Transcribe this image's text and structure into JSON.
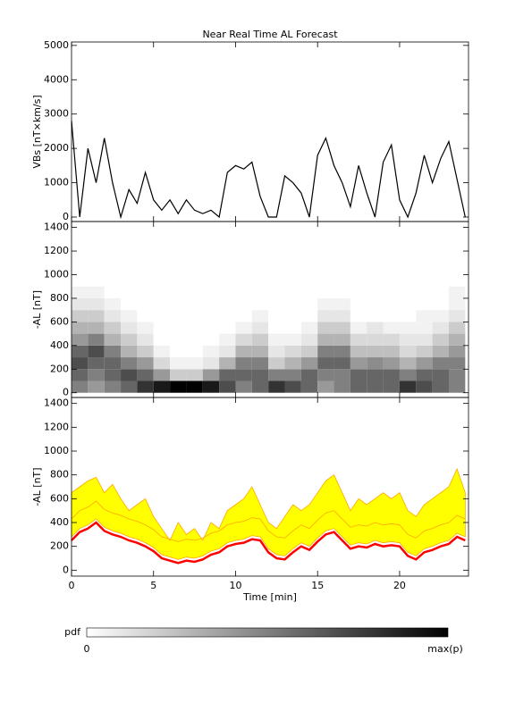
{
  "chart_data": [
    {
      "type": "line",
      "title": "Near Real Time AL Forecast",
      "ylabel": "VBs [nT×km/s]",
      "xlim": [
        0,
        24.2
      ],
      "xticks": [
        0,
        5,
        10,
        15,
        20
      ],
      "ylim": [
        -130,
        5100
      ],
      "yticks": [
        0,
        1000,
        2000,
        3000,
        4000,
        5000
      ],
      "x": [
        0,
        0.5,
        1,
        1.5,
        2,
        2.5,
        3,
        3.5,
        4,
        4.5,
        5,
        5.5,
        6,
        6.5,
        7,
        7.5,
        8,
        8.5,
        9,
        9.5,
        10,
        10.5,
        11,
        11.5,
        12,
        12.5,
        13,
        13.5,
        14,
        14.5,
        15,
        15.5,
        16,
        16.5,
        17,
        17.5,
        18,
        18.5,
        19,
        19.5,
        20,
        20.5,
        21,
        21.5,
        22,
        22.5,
        23,
        23.5,
        24
      ],
      "series": [
        {
          "color": "#000000",
          "values": [
            2800,
            0,
            2000,
            1000,
            2300,
            1000,
            0,
            800,
            400,
            1300,
            500,
            200,
            500,
            100,
            500,
            200,
            100,
            200,
            0,
            1300,
            1500,
            1400,
            1600,
            600,
            0,
            0,
            1200,
            1000,
            700,
            0,
            1800,
            2300,
            1500,
            1000,
            300,
            1500,
            700,
            0,
            1600,
            2100,
            500,
            0,
            700,
            1800,
            1000,
            1700,
            2200,
            1100,
            0
          ]
        }
      ]
    },
    {
      "type": "heatmap",
      "ylabel": "-AL [nT]",
      "xlim": [
        0,
        24.2
      ],
      "xticks": [
        0,
        5,
        10,
        15,
        20
      ],
      "ylim": [
        -40,
        1450
      ],
      "yticks": [
        0,
        200,
        400,
        600,
        800,
        1000,
        1200,
        1400
      ],
      "xbins": [
        0,
        1,
        2,
        3,
        4,
        5,
        6,
        7,
        8,
        9,
        10,
        11,
        12,
        13,
        14,
        15,
        16,
        17,
        18,
        19,
        20,
        21,
        22,
        23,
        24
      ],
      "ybins": [
        0,
        100,
        200,
        300,
        400,
        500,
        600,
        700,
        800,
        900
      ],
      "z": [
        [
          0.5,
          0.6,
          0.7,
          0.6,
          0.4,
          0.3,
          0.2,
          0.1,
          0.05
        ],
        [
          0.4,
          0.5,
          0.6,
          0.7,
          0.5,
          0.3,
          0.2,
          0.1,
          0.05
        ],
        [
          0.5,
          0.6,
          0.6,
          0.5,
          0.3,
          0.2,
          0.1,
          0.05,
          0
        ],
        [
          0.6,
          0.7,
          0.5,
          0.3,
          0.2,
          0.1,
          0.05,
          0,
          0
        ],
        [
          0.8,
          0.6,
          0.4,
          0.2,
          0.1,
          0.05,
          0,
          0,
          0
        ],
        [
          0.9,
          0.4,
          0.15,
          0.05,
          0,
          0,
          0,
          0,
          0
        ],
        [
          1,
          0.2,
          0.05,
          0,
          0,
          0,
          0,
          0,
          0
        ],
        [
          1,
          0.2,
          0.05,
          0,
          0,
          0,
          0,
          0,
          0
        ],
        [
          0.9,
          0.4,
          0.1,
          0.05,
          0,
          0,
          0,
          0,
          0
        ],
        [
          0.7,
          0.6,
          0.3,
          0.1,
          0.05,
          0,
          0,
          0,
          0
        ],
        [
          0.5,
          0.6,
          0.5,
          0.3,
          0.15,
          0.05,
          0,
          0,
          0
        ],
        [
          0.6,
          0.6,
          0.5,
          0.3,
          0.2,
          0.1,
          0.05,
          0,
          0
        ],
        [
          0.8,
          0.5,
          0.2,
          0.1,
          0.05,
          0,
          0,
          0,
          0
        ],
        [
          0.7,
          0.5,
          0.3,
          0.15,
          0.05,
          0,
          0,
          0,
          0
        ],
        [
          0.6,
          0.6,
          0.4,
          0.2,
          0.1,
          0.05,
          0,
          0,
          0
        ],
        [
          0.4,
          0.5,
          0.6,
          0.5,
          0.3,
          0.2,
          0.1,
          0.05,
          0
        ],
        [
          0.5,
          0.5,
          0.6,
          0.5,
          0.3,
          0.2,
          0.1,
          0.05,
          0
        ],
        [
          0.6,
          0.6,
          0.4,
          0.25,
          0.15,
          0.05,
          0,
          0,
          0
        ],
        [
          0.6,
          0.6,
          0.45,
          0.25,
          0.15,
          0.1,
          0,
          0,
          0
        ],
        [
          0.6,
          0.6,
          0.4,
          0.25,
          0.15,
          0.05,
          0,
          0,
          0
        ],
        [
          0.8,
          0.5,
          0.3,
          0.15,
          0.1,
          0.05,
          0,
          0,
          0
        ],
        [
          0.7,
          0.6,
          0.4,
          0.2,
          0.1,
          0.05,
          0.05,
          0,
          0
        ],
        [
          0.6,
          0.6,
          0.5,
          0.3,
          0.2,
          0.1,
          0.05,
          0,
          0
        ],
        [
          0.5,
          0.5,
          0.5,
          0.4,
          0.3,
          0.2,
          0.1,
          0.05,
          0.05
        ]
      ],
      "colorbar": {
        "label": "pdf",
        "min_label": "0",
        "max_label": "max(p)"
      }
    },
    {
      "type": "band",
      "ylabel": "-AL [nT]",
      "xlabel": "Time [min]",
      "xlim": [
        0,
        24.2
      ],
      "xticks": [
        0,
        5,
        10,
        15,
        20
      ],
      "ylim": [
        -50,
        1450
      ],
      "yticks": [
        0,
        200,
        400,
        600,
        800,
        1000,
        1200,
        1400
      ],
      "x": [
        0,
        0.5,
        1,
        1.5,
        2,
        2.5,
        3,
        3.5,
        4,
        4.5,
        5,
        5.5,
        6,
        6.5,
        7,
        7.5,
        8,
        8.5,
        9,
        9.5,
        10,
        10.5,
        11,
        11.5,
        12,
        12.5,
        13,
        13.5,
        14,
        14.5,
        15,
        15.5,
        16,
        16.5,
        17,
        17.5,
        18,
        18.5,
        19,
        19.5,
        20,
        20.5,
        21,
        21.5,
        22,
        22.5,
        23,
        23.5,
        24
      ],
      "band": {
        "color": "#ffff00",
        "low": [
          280,
          350,
          380,
          430,
          360,
          330,
          310,
          280,
          260,
          230,
          190,
          130,
          110,
          90,
          110,
          100,
          120,
          160,
          180,
          230,
          250,
          260,
          290,
          280,
          180,
          130,
          120,
          180,
          230,
          200,
          270,
          330,
          350,
          280,
          210,
          230,
          220,
          250,
          230,
          240,
          230,
          150,
          120,
          180,
          200,
          230,
          250,
          310,
          280
        ],
        "high": [
          650,
          700,
          750,
          780,
          650,
          720,
          600,
          500,
          550,
          600,
          450,
          350,
          250,
          400,
          300,
          350,
          250,
          400,
          350,
          500,
          550,
          600,
          700,
          550,
          400,
          350,
          450,
          550,
          500,
          550,
          650,
          750,
          800,
          650,
          500,
          600,
          550,
          600,
          650,
          600,
          650,
          500,
          450,
          550,
          600,
          650,
          700,
          850,
          650
        ]
      },
      "series": [
        {
          "color": "#ffa500",
          "values": [
            430,
            500,
            530,
            580,
            510,
            480,
            460,
            430,
            410,
            380,
            340,
            280,
            260,
            240,
            260,
            250,
            270,
            310,
            330,
            380,
            400,
            410,
            440,
            430,
            330,
            280,
            270,
            330,
            380,
            350,
            420,
            480,
            500,
            430,
            360,
            380,
            370,
            400,
            380,
            390,
            380,
            300,
            270,
            330,
            350,
            380,
            400,
            460,
            430
          ]
        },
        {
          "color": "#ff0000",
          "values": [
            250,
            320,
            350,
            400,
            330,
            300,
            280,
            250,
            230,
            200,
            160,
            100,
            80,
            60,
            80,
            70,
            90,
            130,
            150,
            200,
            220,
            230,
            260,
            250,
            150,
            100,
            90,
            150,
            200,
            170,
            240,
            300,
            320,
            250,
            180,
            200,
            190,
            220,
            200,
            210,
            200,
            120,
            90,
            150,
            170,
            200,
            220,
            280,
            250
          ]
        }
      ]
    }
  ]
}
